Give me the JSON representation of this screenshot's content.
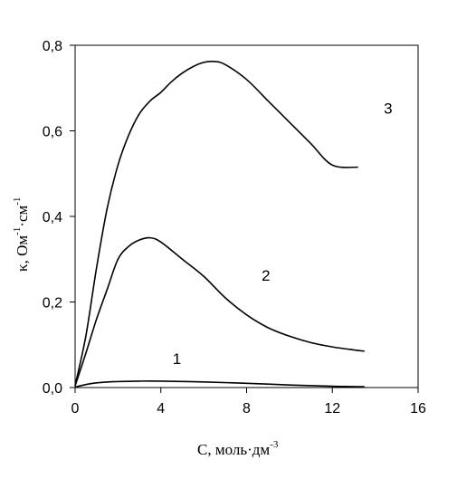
{
  "chart_data": {
    "type": "line",
    "xlabel": {
      "main": "C, моль·дм",
      "sup": "-3"
    },
    "ylabel": {
      "p1": "κ, Ом",
      "sup1": "-1",
      "p2": "·см",
      "sup2": "-1"
    },
    "xlim": [
      0,
      16
    ],
    "ylim": [
      0,
      0.8
    ],
    "x_ticks": [
      {
        "value": 0,
        "label": "0"
      },
      {
        "value": 4,
        "label": "4"
      },
      {
        "value": 8,
        "label": "8"
      },
      {
        "value": 12,
        "label": "12"
      },
      {
        "value": 16,
        "label": "16"
      }
    ],
    "y_ticks": [
      {
        "value": 0,
        "label": "0,0"
      },
      {
        "value": 0.2,
        "label": "0,2"
      },
      {
        "value": 0.4,
        "label": "0,4"
      },
      {
        "value": 0.6,
        "label": "0,6"
      },
      {
        "value": 0.8,
        "label": "0,8"
      }
    ],
    "grid": false,
    "series": [
      {
        "name": "1",
        "label_at": [
          9.5,
          0.055
        ],
        "points": [
          [
            0,
            0.001
          ],
          [
            0.5,
            0.007
          ],
          [
            1,
            0.011
          ],
          [
            2,
            0.014
          ],
          [
            3,
            0.015
          ],
          [
            4,
            0.015
          ],
          [
            6,
            0.013
          ],
          [
            8,
            0.01
          ],
          [
            10,
            0.006
          ],
          [
            12,
            0.003
          ],
          [
            13.5,
            0.002
          ]
        ]
      },
      {
        "name": "2",
        "label_at": [
          17.8,
          0.25
        ],
        "points": [
          [
            0,
            0.004
          ],
          [
            0.5,
            0.08
          ],
          [
            1,
            0.16
          ],
          [
            1.5,
            0.23
          ],
          [
            2,
            0.3
          ],
          [
            2.5,
            0.33
          ],
          [
            3,
            0.345
          ],
          [
            3.5,
            0.35
          ],
          [
            4,
            0.34
          ],
          [
            5,
            0.3
          ],
          [
            6,
            0.26
          ],
          [
            7,
            0.21
          ],
          [
            8,
            0.17
          ],
          [
            9,
            0.14
          ],
          [
            10,
            0.12
          ],
          [
            11,
            0.105
          ],
          [
            12,
            0.095
          ],
          [
            13,
            0.088
          ],
          [
            13.5,
            0.085
          ]
        ]
      },
      {
        "name": "3",
        "label_at": [
          29.2,
          0.64
        ],
        "points": [
          [
            0,
            0.005
          ],
          [
            0.5,
            0.12
          ],
          [
            1,
            0.28
          ],
          [
            1.5,
            0.42
          ],
          [
            2,
            0.52
          ],
          [
            2.5,
            0.59
          ],
          [
            3,
            0.64
          ],
          [
            3.5,
            0.67
          ],
          [
            4,
            0.69
          ],
          [
            4.5,
            0.715
          ],
          [
            5,
            0.735
          ],
          [
            5.5,
            0.75
          ],
          [
            6,
            0.76
          ],
          [
            6.5,
            0.762
          ],
          [
            7,
            0.755
          ],
          [
            8,
            0.72
          ],
          [
            9,
            0.67
          ],
          [
            10,
            0.62
          ],
          [
            11,
            0.57
          ],
          [
            12,
            0.52
          ],
          [
            13.2,
            0.515
          ]
        ]
      }
    ]
  }
}
